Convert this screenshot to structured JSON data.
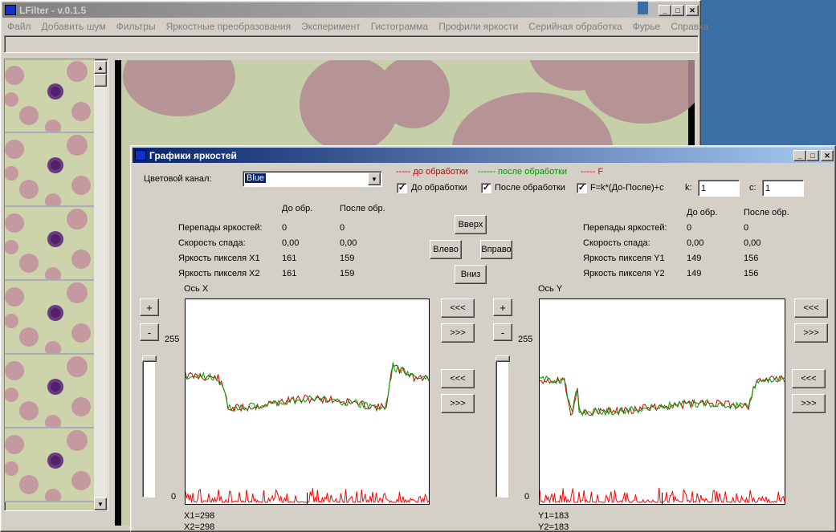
{
  "main_window": {
    "title": "LFilter - v.0.1.5",
    "menu": [
      "Файл",
      "Добавить шум",
      "Фильтры",
      "Яркостные преобразования",
      "Эксперимент",
      "Гистограмма",
      "Профили яркости",
      "Серийная обработка",
      "Фурье",
      "Справка"
    ],
    "min_glyph": "_",
    "max_glyph": "□",
    "close_glyph": "✕"
  },
  "dialog": {
    "title": "Графики яркостей",
    "channel_label": "Цветовой канал:",
    "channel_value": "Blue",
    "legend_before": "----- до обработки",
    "legend_after": "------ после обработки",
    "legend_f": "----- F",
    "cb_before_label": "До обработки",
    "cb_after_label": "После обработки",
    "cb_f_label": "F=k*(До-После)+c",
    "k_label": "k:",
    "k_value": "1",
    "c_label": "c:",
    "c_value": "1",
    "nav": {
      "up": "Вверх",
      "left": "Влево",
      "right": "Вправо",
      "down": "Вниз"
    },
    "stats_left": {
      "col_before": "До обр.",
      "col_after": "После обр.",
      "rows": [
        {
          "label": "Перепады яркостей:",
          "before": "0",
          "after": "0"
        },
        {
          "label": "Скорость спада:",
          "before": "0,00",
          "after": "0,00"
        },
        {
          "label": "Яркость пикселя X1",
          "before": "161",
          "after": "159"
        },
        {
          "label": "Яркость пикселя X2",
          "before": "161",
          "after": "159"
        }
      ]
    },
    "stats_right": {
      "col_before": "До обр.",
      "col_after": "После обр.",
      "rows": [
        {
          "label": "Перепады яркостей:",
          "before": "0",
          "after": "0"
        },
        {
          "label": "Скорость спада:",
          "before": "0,00",
          "after": "0,00"
        },
        {
          "label": "Яркость пикселя Y1",
          "before": "149",
          "after": "156"
        },
        {
          "label": "Яркость пикселя Y2",
          "before": "149",
          "after": "156"
        }
      ]
    },
    "plot_x": {
      "axis_label": "Ось X",
      "y_max": "255",
      "y_min": "0",
      "coord1": "X1=298",
      "coord2": "X2=298"
    },
    "plot_y": {
      "axis_label": "Ось Y",
      "y_max": "255",
      "y_min": "0",
      "coord1": "Y1=183",
      "coord2": "Y2=183"
    },
    "zoom_plus": "+",
    "zoom_minus": "-",
    "shift_left": "<<<",
    "shift_right": ">>>"
  },
  "colors": {
    "before": "#cc0000",
    "after": "#009900",
    "f": "#ff0000",
    "titlebar": "#0a246a",
    "titlebar_inactive": "#808080"
  }
}
